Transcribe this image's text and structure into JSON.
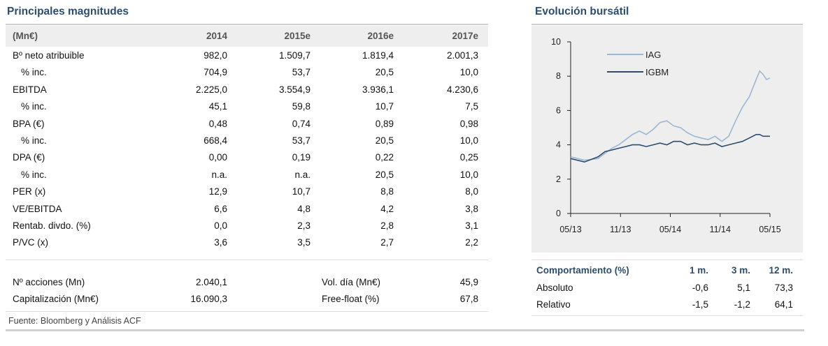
{
  "left": {
    "title": "Principales magnitudes",
    "table": {
      "headers": [
        "(Mn€)",
        "2014",
        "2015e",
        "2016e",
        "2017e"
      ],
      "rows": [
        {
          "label": "Bº neto atribuible",
          "values": [
            "982,0",
            "1.509,7",
            "1.819,4",
            "2.001,3"
          ]
        },
        {
          "label": "% inc.",
          "values": [
            "704,9",
            "53,7",
            "20,5",
            "10,0"
          ]
        },
        {
          "label": "EBITDA",
          "values": [
            "2.225,0",
            "3.554,9",
            "3.936,1",
            "4.230,6"
          ]
        },
        {
          "label": "% inc.",
          "values": [
            "45,1",
            "59,8",
            "10,7",
            "7,5"
          ]
        },
        {
          "label": "BPA (€)",
          "values": [
            "0,48",
            "0,74",
            "0,89",
            "0,98"
          ]
        },
        {
          "label": "% inc.",
          "values": [
            "668,4",
            "53,7",
            "20,5",
            "10,0"
          ]
        },
        {
          "label": "DPA (€)",
          "values": [
            "0,00",
            "0,19",
            "0,22",
            "0,25"
          ]
        },
        {
          "label": "% inc.",
          "values": [
            "n.a.",
            "n.a.",
            "20,5",
            "10,0"
          ]
        },
        {
          "label": "PER (x)",
          "values": [
            "12,9",
            "10,7",
            "8,8",
            "8,0"
          ]
        },
        {
          "label": "VE/EBITDA",
          "values": [
            "6,6",
            "4,8",
            "4,2",
            "3,8"
          ]
        },
        {
          "label": "Rentab. divdo. (%)",
          "values": [
            "0,0",
            "2,3",
            "2,8",
            "3,1"
          ]
        },
        {
          "label": "P/VC (x)",
          "values": [
            "3,6",
            "3,5",
            "2,7",
            "2,2"
          ]
        }
      ]
    },
    "summary": [
      {
        "label": "Nº acciones (Mn)",
        "value": "2.040,1",
        "label2": "Vol. día (Mn€)",
        "value2": "45,9"
      },
      {
        "label": "Capitalización (Mn€)",
        "value": "16.090,3",
        "label2": "Free-float (%)",
        "value2": "67,8"
      }
    ],
    "source": "Fuente: Bloomberg y Análisis ACF"
  },
  "right": {
    "title": "Evolución bursátil",
    "behaviour": {
      "headers": [
        "Comportamiento (%)",
        "1 m.",
        "3 m.",
        "12 m."
      ],
      "rows": [
        {
          "label": "Absoluto",
          "values": [
            "-0,6",
            "5,1",
            "73,3"
          ]
        },
        {
          "label": "Relativo",
          "values": [
            "-1,5",
            "-1,2",
            "64,1"
          ]
        }
      ]
    }
  },
  "chart_data": {
    "type": "line",
    "title": "Evolución bursátil",
    "xlabel": "",
    "ylabel": "",
    "x_ticks": [
      "05/13",
      "11/13",
      "05/14",
      "11/14",
      "05/15"
    ],
    "ylim": [
      0,
      10
    ],
    "y_ticks": [
      "0",
      "2",
      "4",
      "6",
      "8",
      "10"
    ],
    "legend": "top-left",
    "series": [
      {
        "name": "IAG",
        "color": "#9db7d2",
        "points": [
          [
            0,
            3.3
          ],
          [
            2,
            3.1
          ],
          [
            4,
            3.2
          ],
          [
            5,
            3.5
          ],
          [
            6,
            3.8
          ],
          [
            7,
            4.0
          ],
          [
            8,
            4.3
          ],
          [
            9,
            4.6
          ],
          [
            10,
            4.8
          ],
          [
            11,
            4.6
          ],
          [
            12,
            4.9
          ],
          [
            13,
            5.3
          ],
          [
            14,
            5.4
          ],
          [
            15,
            5.1
          ],
          [
            16,
            5.0
          ],
          [
            17,
            4.7
          ],
          [
            18,
            4.5
          ],
          [
            19,
            4.4
          ],
          [
            20,
            4.3
          ],
          [
            21,
            4.5
          ],
          [
            22,
            4.2
          ],
          [
            23,
            4.5
          ],
          [
            24,
            5.4
          ],
          [
            25,
            6.2
          ],
          [
            26,
            6.8
          ],
          [
            27,
            7.8
          ],
          [
            27.5,
            8.3
          ],
          [
            28,
            8.1
          ],
          [
            28.5,
            7.8
          ],
          [
            29,
            7.9
          ]
        ]
      },
      {
        "name": "IGBM",
        "color": "#2d4d6e",
        "points": [
          [
            0,
            3.2
          ],
          [
            2,
            3.0
          ],
          [
            4,
            3.3
          ],
          [
            5,
            3.6
          ],
          [
            6,
            3.7
          ],
          [
            7,
            3.8
          ],
          [
            8,
            3.9
          ],
          [
            9,
            4.0
          ],
          [
            10,
            4.0
          ],
          [
            11,
            3.9
          ],
          [
            12,
            4.0
          ],
          [
            13,
            4.1
          ],
          [
            14,
            4.0
          ],
          [
            15,
            4.2
          ],
          [
            16,
            4.2
          ],
          [
            17,
            4.0
          ],
          [
            18,
            4.1
          ],
          [
            19,
            4.0
          ],
          [
            20,
            4.0
          ],
          [
            21,
            4.1
          ],
          [
            22,
            3.9
          ],
          [
            23,
            4.0
          ],
          [
            24,
            4.1
          ],
          [
            25,
            4.2
          ],
          [
            26,
            4.4
          ],
          [
            27,
            4.6
          ],
          [
            27.5,
            4.6
          ],
          [
            28,
            4.5
          ],
          [
            29,
            4.5
          ]
        ]
      }
    ],
    "x_range": [
      0,
      29
    ]
  }
}
